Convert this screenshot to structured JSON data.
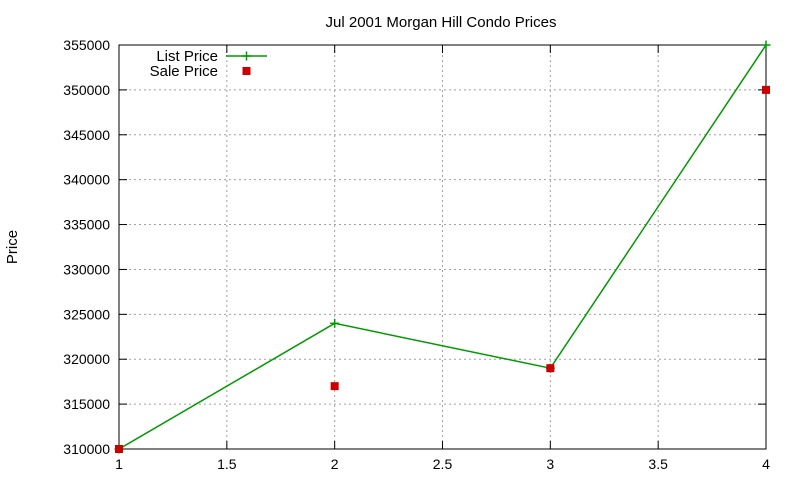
{
  "chart_data": {
    "type": "line",
    "title": "Jul 2001 Morgan Hill Condo Prices",
    "xlabel": "",
    "ylabel": "Price",
    "xlim": [
      1,
      4
    ],
    "ylim": [
      310000,
      355000
    ],
    "x_ticks": [
      "1",
      "1.5",
      "2",
      "2.5",
      "3",
      "3.5",
      "4"
    ],
    "y_ticks": [
      "310000",
      "315000",
      "320000",
      "325000",
      "330000",
      "335000",
      "340000",
      "345000",
      "350000",
      "355000"
    ],
    "grid": true,
    "legend_position": "top-left",
    "series": [
      {
        "name": "List Price",
        "style": "linespoints",
        "marker": "plus",
        "color": "#009900",
        "x": [
          1,
          2,
          3,
          4
        ],
        "y": [
          310000,
          324000,
          319000,
          355000
        ]
      },
      {
        "name": "Sale Price",
        "style": "points",
        "marker": "square",
        "color": "#cc0000",
        "x": [
          1,
          2,
          3,
          4
        ],
        "y": [
          310000,
          317000,
          319000,
          350000
        ]
      }
    ]
  }
}
